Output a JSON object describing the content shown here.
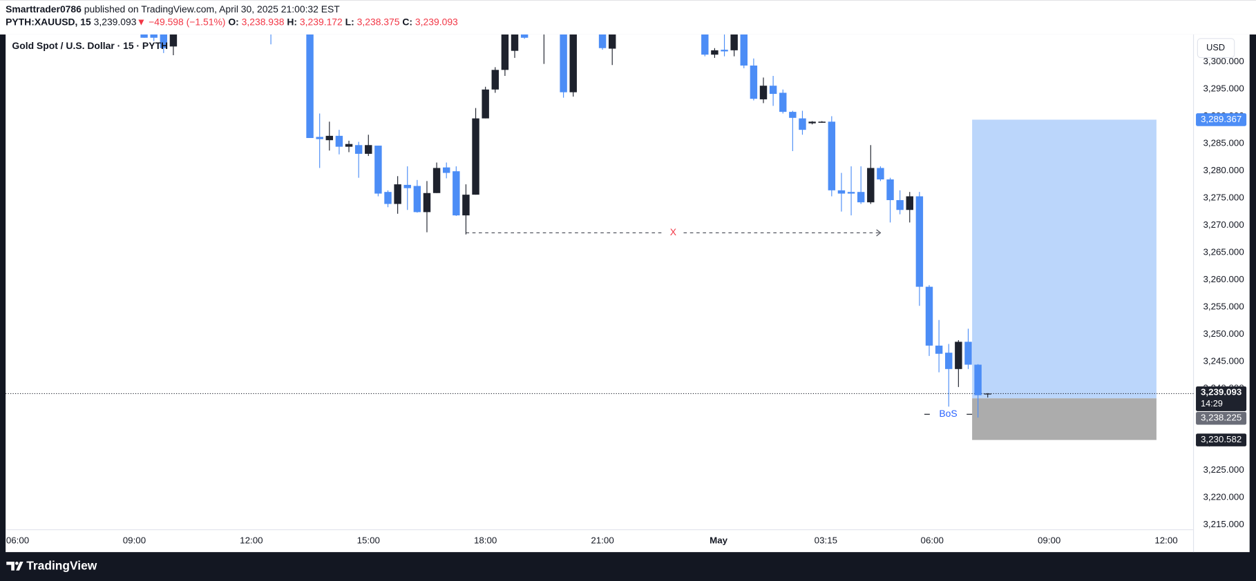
{
  "header": {
    "author": "Smarttrader0786",
    "published": " published on TradingView.com, April 30, 2025 21:00:32 EST",
    "line2": [
      {
        "text": "PYTH:XAUUSD, 15 ",
        "color": "#131722",
        "bold": true
      },
      {
        "text": "3,239.093",
        "color": "#131722"
      },
      {
        "text": "▼ −49.598 (−1.51%) ",
        "color": "#f23645"
      },
      {
        "text": "O:",
        "color": "#131722",
        "bold": true
      },
      {
        "text": " 3,238.938 ",
        "color": "#f23645"
      },
      {
        "text": "H:",
        "color": "#131722",
        "bold": true
      },
      {
        "text": " 3,239.172 ",
        "color": "#f23645"
      },
      {
        "text": "L:",
        "color": "#131722",
        "bold": true
      },
      {
        "text": " 3,238.375 ",
        "color": "#f23645"
      },
      {
        "text": "C:",
        "color": "#131722",
        "bold": true
      },
      {
        "text": " 3,239.093",
        "color": "#f23645"
      }
    ]
  },
  "footer": {
    "brand": "TradingView"
  },
  "chart_data": {
    "type": "candlestick",
    "title": "Gold Spot / U.S. Dollar · 15 · PYTH",
    "currency": "USD",
    "up_color": "#1e222d",
    "down_color": "#4c8df6",
    "grid": false,
    "xlim": [
      -1.2,
      120.6
    ],
    "ylim": [
      3210.0,
      3305.0
    ],
    "xticks": [
      {
        "value": 0,
        "label": "06:00"
      },
      {
        "value": 12,
        "label": "09:00"
      },
      {
        "value": 24,
        "label": "12:00"
      },
      {
        "value": 36,
        "label": "15:00"
      },
      {
        "value": 48,
        "label": "18:00"
      },
      {
        "value": 60,
        "label": "21:00"
      },
      {
        "value": 71.9,
        "label": "May"
      },
      {
        "value": 82.9,
        "label": "03:15"
      },
      {
        "value": 93.8,
        "label": "06:00"
      },
      {
        "value": 105.8,
        "label": "09:00"
      },
      {
        "value": 117.8,
        "label": "12:00"
      }
    ],
    "yticks": [
      {
        "value": 3215,
        "label": "3,215.000"
      },
      {
        "value": 3220,
        "label": "3,220.000"
      },
      {
        "value": 3225,
        "label": "3,225.000"
      },
      {
        "value": 3230,
        "label": "3,230.000"
      },
      {
        "value": 3235,
        "label": "3,235.000"
      },
      {
        "value": 3240,
        "label": "3,240.000"
      },
      {
        "value": 3245,
        "label": "3,245.000"
      },
      {
        "value": 3250,
        "label": "3,250.000"
      },
      {
        "value": 3255,
        "label": "3,255.000"
      },
      {
        "value": 3260,
        "label": "3,260.000"
      },
      {
        "value": 3265,
        "label": "3,265.000"
      },
      {
        "value": 3270,
        "label": "3,270.000"
      },
      {
        "value": 3275,
        "label": "3,275.000"
      },
      {
        "value": 3280,
        "label": "3,280.000"
      },
      {
        "value": 3285,
        "label": "3,285.000"
      },
      {
        "value": 3290,
        "label": "3,290.000"
      },
      {
        "value": 3295,
        "label": "3,295.000"
      },
      {
        "value": 3300,
        "label": "3,300.000"
      }
    ],
    "x": [
      13,
      14,
      15,
      16,
      26,
      30,
      31,
      32,
      33,
      34,
      35,
      36,
      37,
      38,
      39,
      40,
      41,
      42,
      43,
      44,
      45,
      46,
      47,
      48,
      49,
      50,
      51,
      52,
      54,
      56,
      57,
      60,
      61,
      70.5,
      71.5,
      72.5,
      73.5,
      74.5,
      75.5,
      76.5,
      77.5,
      78.5,
      79.5,
      80.5,
      81.5,
      82.5,
      83.5,
      84.5,
      85.5,
      86.5,
      87.5,
      88.5,
      89.5,
      90.5,
      91.5,
      92.5,
      93.5,
      94.5,
      95.5,
      96.5,
      97.5,
      98.5,
      99.5
    ],
    "open": [
      3305.5,
      3305.2,
      3305.5,
      3302.8,
      3308,
      3306,
      3286.2,
      3285.6,
      3286.4,
      3284.4,
      3284.7,
      3283.1,
      3284.6,
      3276.1,
      3273.9,
      3277.4,
      3277.2,
      3272.4,
      3275.9,
      3280.6,
      3279.9,
      3271.8,
      3275.6,
      3289.6,
      3294.9,
      3298.5,
      3302.0,
      3305.0,
      3306,
      3306,
      3294.4,
      3305,
      3302.4,
      3305,
      3301.3,
      3302.2,
      3302.1,
      3305,
      3299.3,
      3293.1,
      3295.6,
      3294.3,
      3290.8,
      3289.6,
      3288.7,
      3288.8,
      3289.0,
      3276.4,
      3276.1,
      3276.1,
      3274.2,
      3280.5,
      3278.4,
      3274.6,
      3272.8,
      3275.3,
      3258.7,
      3247.9,
      3246.6,
      3243.6,
      3248.6,
      3244.4,
      3238.938
    ],
    "high": [
      3306,
      3305.8,
      3306,
      3306,
      3309,
      3307,
      3290.5,
      3289.0,
      3287.5,
      3285.5,
      3285.3,
      3286.6,
      3284.6,
      3276.4,
      3279.0,
      3280.8,
      3278.3,
      3278.1,
      3281.5,
      3281.5,
      3280.8,
      3277.5,
      3291.5,
      3295.4,
      3299.0,
      3306,
      3306,
      3305.5,
      3307,
      3307,
      3306,
      3306,
      3306,
      3306,
      3302.5,
      3305,
      3306,
      3306,
      3300.6,
      3297.1,
      3297.4,
      3294.9,
      3291.0,
      3291.0,
      3289.1,
      3289.1,
      3290.0,
      3279.6,
      3280.8,
      3280.8,
      3284.7,
      3280.8,
      3278.7,
      3276.4,
      3276.1,
      3276.1,
      3259.0,
      3252.6,
      3248.2,
      3248.9,
      3251.0,
      3244.5,
      3239.172
    ],
    "low": [
      3304.4,
      3303.8,
      3301.6,
      3301.2,
      3303.2,
      3286.0,
      3280.5,
      3283.7,
      3283.0,
      3283.4,
      3278.7,
      3282.7,
      3275.3,
      3273.3,
      3272.1,
      3272.8,
      3272.3,
      3268.7,
      3275.9,
      3278.6,
      3271.7,
      3268.3,
      3275.6,
      3289.6,
      3294.3,
      3297.4,
      3300.7,
      3304.2,
      3299.6,
      3293.4,
      3293.6,
      3302.2,
      3299.4,
      3301.0,
      3300.7,
      3301.0,
      3301.0,
      3298.8,
      3292.9,
      3292.4,
      3291.9,
      3290.5,
      3283.6,
      3286.6,
      3288.5,
      3288.8,
      3275.3,
      3272.5,
      3271.8,
      3273.9,
      3273.9,
      3278.1,
      3270.5,
      3272.0,
      3270.5,
      3255.2,
      3246.0,
      3243.0,
      3236.7,
      3240.3,
      3243.6,
      3234.7,
      3238.375
    ],
    "close": [
      3304.4,
      3304.4,
      3302.5,
      3305.3,
      3307,
      3286.0,
      3285.8,
      3286.4,
      3284.4,
      3284.9,
      3283.1,
      3284.7,
      3275.8,
      3273.9,
      3277.5,
      3276.8,
      3272.4,
      3275.9,
      3280.5,
      3279.6,
      3271.8,
      3275.6,
      3289.6,
      3294.9,
      3298.5,
      3305.5,
      3305.5,
      3304.4,
      3306.5,
      3294.4,
      3305.5,
      3302.5,
      3305.5,
      3301.3,
      3302.1,
      3301.9,
      3305,
      3299.3,
      3293.2,
      3295.6,
      3294.1,
      3290.8,
      3289.7,
      3287.5,
      3289.0,
      3289.0,
      3276.4,
      3275.8,
      3275.8,
      3274.2,
      3280.5,
      3278.4,
      3274.6,
      3272.8,
      3275.3,
      3258.7,
      3247.9,
      3246.4,
      3243.6,
      3248.6,
      3244.4,
      3238.8,
      3239.093
    ],
    "last_price": {
      "value": 3239.093,
      "label": "3,239.093",
      "countdown": "14:29"
    },
    "position": {
      "x": [
        97.9,
        116.8
      ],
      "target": {
        "value": 3289.367,
        "label": "3,289.367"
      },
      "entry": {
        "value": 3238.225,
        "label": "3,238.225"
      },
      "stop": {
        "value": 3230.582,
        "label": "3,230.582"
      },
      "profit_color": "#bbd6fb",
      "loss_color": "#acacac"
    },
    "annotations": [
      {
        "label": "X",
        "price": 3268.6,
        "x": [
          46,
          88.5
        ],
        "color": "#f23645",
        "style": "dashed"
      },
      {
        "label": "BoS",
        "price": 3235.3,
        "x": [
          93,
          97.9
        ],
        "color": "#2962ff",
        "style": "solid"
      }
    ]
  }
}
